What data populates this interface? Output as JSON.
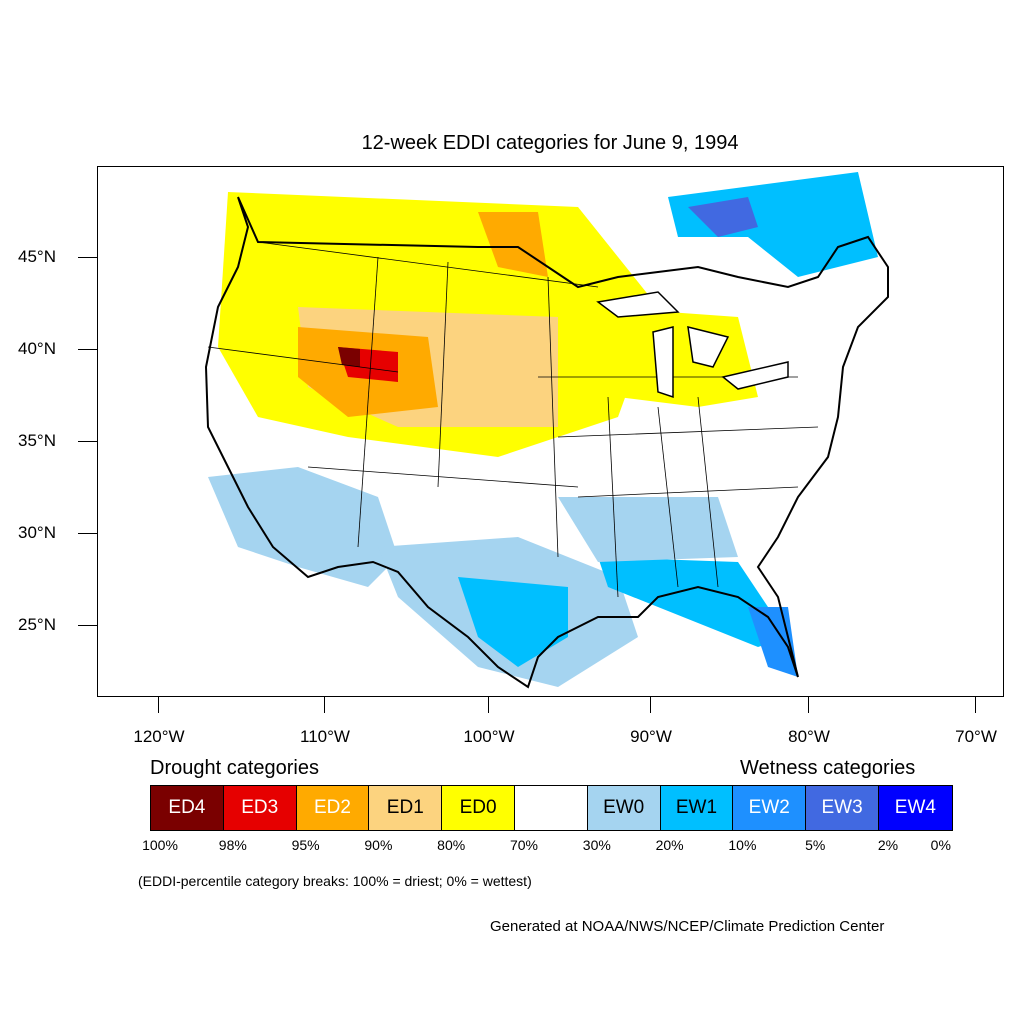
{
  "title": "12-week EDDI categories for June 9, 1994",
  "y_axis": {
    "labels": [
      "45°N",
      "40°N",
      "35°N",
      "30°N",
      "25°N"
    ]
  },
  "x_axis": {
    "labels": [
      "120°W",
      "110°W",
      "100°W",
      "90°W",
      "80°W",
      "70°W"
    ]
  },
  "legend": {
    "drought_title": "Drought categories",
    "wetness_title": "Wetness categories",
    "categories": [
      {
        "label": "ED4",
        "color": "#7a0000",
        "text_color": "#ffffff"
      },
      {
        "label": "ED3",
        "color": "#e60000",
        "text_color": "#ffffff"
      },
      {
        "label": "ED2",
        "color": "#ffaa00",
        "text_color": "#ffffff"
      },
      {
        "label": "ED1",
        "color": "#fcd37f",
        "text_color": "#000000"
      },
      {
        "label": "ED0",
        "color": "#ffff00",
        "text_color": "#000000"
      },
      {
        "label": "",
        "color": "#ffffff",
        "text_color": "#000000"
      },
      {
        "label": "EW0",
        "color": "#a5d4f0",
        "text_color": "#000000"
      },
      {
        "label": "EW1",
        "color": "#00bfff",
        "text_color": "#000000"
      },
      {
        "label": "EW2",
        "color": "#1e90ff",
        "text_color": "#ffffff"
      },
      {
        "label": "EW3",
        "color": "#4169e1",
        "text_color": "#ffffff"
      },
      {
        "label": "EW4",
        "color": "#0000ff",
        "text_color": "#ffffff"
      }
    ],
    "breaks": [
      "100%",
      "98%",
      "95%",
      "90%",
      "80%",
      "70%",
      "30%",
      "20%",
      "10%",
      "5%",
      "2%",
      "0%"
    ]
  },
  "note": "(EDDI-percentile category breaks: 100% = driest; 0% = wettest)",
  "credit": "Generated at NOAA/NWS/NCEP/Climate Prediction Center"
}
